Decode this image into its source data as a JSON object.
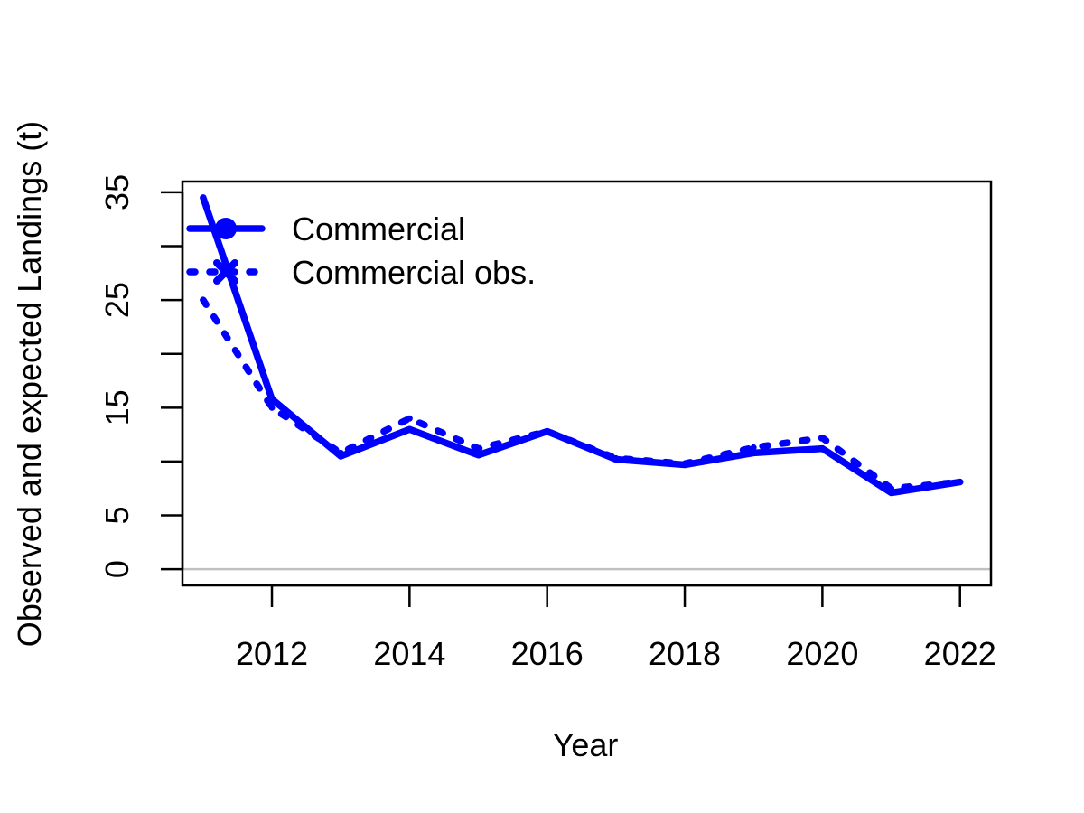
{
  "chart_data": {
    "type": "line",
    "title": "",
    "xlabel": "Year",
    "ylabel": "Observed and expected Landings (t)",
    "xlim": [
      2010.7,
      2022.45
    ],
    "ylim": [
      -1.5,
      36
    ],
    "x_ticks": [
      2012,
      2014,
      2016,
      2018,
      2020,
      2022
    ],
    "y_ticks": [
      0,
      5,
      15,
      25,
      35
    ],
    "y_minor_ticks": [
      0,
      5,
      10,
      15,
      20,
      25,
      30,
      35
    ],
    "x": [
      2011,
      2012,
      2013,
      2014,
      2015,
      2016,
      2017,
      2018,
      2019,
      2020,
      2021,
      2022
    ],
    "series": [
      {
        "name": "Commercial",
        "style": "solid",
        "color": "#0000ff",
        "values": [
          34.5,
          15.8,
          10.5,
          13.0,
          10.6,
          12.8,
          10.2,
          9.7,
          10.8,
          11.2,
          7.1,
          8.1
        ]
      },
      {
        "name": "Commercial obs.",
        "style": "dotted",
        "color": "#0000ff",
        "values": [
          25.0,
          15.0,
          10.8,
          14.0,
          11.2,
          12.8,
          10.3,
          9.8,
          11.3,
          12.2,
          7.5,
          8.1
        ]
      }
    ],
    "reference_line": {
      "y": 0,
      "color": "#c0c0c0"
    },
    "grid": false,
    "legend": {
      "placement": "top-left",
      "entries": [
        "Commercial",
        "Commercial obs."
      ]
    }
  }
}
